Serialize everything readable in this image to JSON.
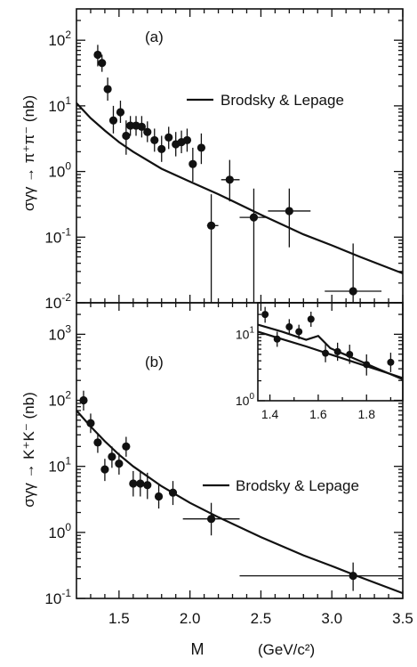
{
  "chart_data": [
    {
      "type": "scatter",
      "panel_label": "(a)",
      "ylabel": "σγγ → π⁺π⁻  (nb)",
      "yscale": "log",
      "ylim": [
        0.01,
        300
      ],
      "xlim": [
        1.2,
        3.5
      ],
      "yticks": [
        {
          "value": 0.01,
          "base": "10",
          "exp": "-2"
        },
        {
          "value": 0.1,
          "base": "10",
          "exp": "-1"
        },
        {
          "value": 1,
          "base": "10",
          "exp": "0"
        },
        {
          "value": 10,
          "base": "10",
          "exp": "1"
        },
        {
          "value": 100,
          "base": "10",
          "exp": "2"
        }
      ],
      "legend": {
        "label": "Brodsky & Lepage",
        "placement": "upper-right"
      },
      "series": [
        {
          "name": "data",
          "points": [
            {
              "x": 1.35,
              "y": 60,
              "ylo": 40,
              "yhi": 85
            },
            {
              "x": 1.38,
              "y": 45,
              "ylo": 33,
              "yhi": 60
            },
            {
              "x": 1.42,
              "y": 18,
              "ylo": 12,
              "yhi": 27
            },
            {
              "x": 1.46,
              "y": 6.0,
              "ylo": 3.8,
              "yhi": 10
            },
            {
              "x": 1.51,
              "y": 8.0,
              "ylo": 5.5,
              "yhi": 12
            },
            {
              "x": 1.55,
              "y": 3.5,
              "ylo": 1.8,
              "yhi": 6
            },
            {
              "x": 1.58,
              "y": 5.0,
              "ylo": 3.5,
              "yhi": 7
            },
            {
              "x": 1.62,
              "y": 5.0,
              "ylo": 3.5,
              "yhi": 7
            },
            {
              "x": 1.66,
              "y": 4.8,
              "ylo": 3.3,
              "yhi": 7
            },
            {
              "x": 1.7,
              "y": 4.0,
              "ylo": 2.8,
              "yhi": 5.8
            },
            {
              "x": 1.75,
              "y": 3.0,
              "ylo": 2.0,
              "yhi": 4.5
            },
            {
              "x": 1.8,
              "y": 2.2,
              "ylo": 1.4,
              "yhi": 3.5
            },
            {
              "x": 1.85,
              "y": 3.3,
              "ylo": 2.2,
              "yhi": 4.8
            },
            {
              "x": 1.9,
              "y": 2.6,
              "ylo": 1.7,
              "yhi": 4.0
            },
            {
              "x": 1.94,
              "y": 2.8,
              "ylo": 1.9,
              "yhi": 4.2
            },
            {
              "x": 1.98,
              "y": 3.0,
              "ylo": 2.0,
              "yhi": 4.5
            },
            {
              "x": 2.02,
              "y": 1.3,
              "ylo": 0.7,
              "yhi": 2.3
            },
            {
              "x": 2.08,
              "y": 2.3,
              "ylo": 1.3,
              "yhi": 3.8
            },
            {
              "x": 2.15,
              "y": 0.15,
              "ylo": 0.01,
              "yhi": 0.45,
              "xlo": 2.12,
              "xhi": 2.2
            },
            {
              "x": 2.28,
              "y": 0.75,
              "ylo": 0.35,
              "yhi": 1.5,
              "xlo": 2.22,
              "xhi": 2.35
            },
            {
              "x": 2.45,
              "y": 0.2,
              "ylo": 0.01,
              "yhi": 0.55,
              "xlo": 2.35,
              "xhi": 2.55
            },
            {
              "x": 2.7,
              "y": 0.25,
              "ylo": 0.07,
              "yhi": 0.55,
              "xlo": 2.55,
              "xhi": 2.85
            },
            {
              "x": 3.15,
              "y": 0.015,
              "ylo": 0.01,
              "yhi": 0.08,
              "xlo": 2.95,
              "xhi": 3.35
            }
          ]
        },
        {
          "name": "Brodsky & Lepage",
          "type": "line",
          "x": [
            1.2,
            1.3,
            1.4,
            1.5,
            1.6,
            1.8,
            2.0,
            2.2,
            2.5,
            2.8,
            3.0,
            3.2,
            3.5
          ],
          "y": [
            11,
            6.5,
            4.2,
            2.8,
            2.0,
            1.1,
            0.7,
            0.45,
            0.22,
            0.11,
            0.075,
            0.05,
            0.028
          ]
        }
      ]
    },
    {
      "type": "scatter",
      "panel_label": "(b)",
      "ylabel": "σγγ → K⁺K⁻  (nb)",
      "xlabel": "M",
      "xunit": "(GeV/c²)",
      "yscale": "log",
      "ylim": [
        0.1,
        3000
      ],
      "xlim": [
        1.2,
        3.5
      ],
      "xticks": [
        "1.5",
        "2.0",
        "2.5",
        "3.0",
        "3.5"
      ],
      "yticks": [
        {
          "value": 0.1,
          "base": "10",
          "exp": "-1"
        },
        {
          "value": 1,
          "base": "10",
          "exp": "0"
        },
        {
          "value": 10,
          "base": "10",
          "exp": "1"
        },
        {
          "value": 100,
          "base": "10",
          "exp": "2"
        },
        {
          "value": 1000,
          "base": "10",
          "exp": "3"
        }
      ],
      "legend": {
        "label": "Brodsky & Lepage",
        "placement": "center-right"
      },
      "series": [
        {
          "name": "data",
          "points": [
            {
              "x": 1.25,
              "y": 100,
              "ylo": 70,
              "yhi": 140
            },
            {
              "x": 1.3,
              "y": 45,
              "ylo": 32,
              "yhi": 63
            },
            {
              "x": 1.35,
              "y": 23,
              "ylo": 16,
              "yhi": 32
            },
            {
              "x": 1.4,
              "y": 9,
              "ylo": 6,
              "yhi": 13
            },
            {
              "x": 1.45,
              "y": 14,
              "ylo": 9.5,
              "yhi": 20
            },
            {
              "x": 1.5,
              "y": 11,
              "ylo": 7.5,
              "yhi": 16
            },
            {
              "x": 1.55,
              "y": 20,
              "ylo": 14,
              "yhi": 28
            },
            {
              "x": 1.6,
              "y": 5.5,
              "ylo": 3.5,
              "yhi": 8.5
            },
            {
              "x": 1.65,
              "y": 5.5,
              "ylo": 3.5,
              "yhi": 8.5
            },
            {
              "x": 1.7,
              "y": 5.2,
              "ylo": 3.2,
              "yhi": 8
            },
            {
              "x": 1.78,
              "y": 3.5,
              "ylo": 2.3,
              "yhi": 5.3
            },
            {
              "x": 1.88,
              "y": 4.0,
              "ylo": 2.6,
              "yhi": 6.0
            },
            {
              "x": 2.15,
              "y": 1.6,
              "ylo": 0.9,
              "yhi": 2.8,
              "xlo": 1.95,
              "xhi": 2.35
            },
            {
              "x": 3.15,
              "y": 0.22,
              "ylo": 0.13,
              "yhi": 0.35,
              "xlo": 2.35,
              "xhi": 3.5
            }
          ]
        },
        {
          "name": "Brodsky & Lepage",
          "type": "line",
          "x": [
            1.2,
            1.3,
            1.4,
            1.5,
            1.6,
            1.8,
            2.0,
            2.2,
            2.5,
            2.8,
            3.0,
            3.2,
            3.5
          ],
          "y": [
            70,
            40,
            24,
            15,
            10,
            5,
            2.8,
            1.7,
            0.85,
            0.45,
            0.31,
            0.21,
            0.12
          ]
        }
      ],
      "inset": {
        "yscale": "log",
        "ylim": [
          1,
          30
        ],
        "xlim": [
          1.35,
          1.95
        ],
        "xticks": [
          "1.4",
          "1.6",
          "1.8"
        ],
        "yticks": [
          {
            "value": 1,
            "base": "10",
            "exp": "0"
          },
          {
            "value": 10,
            "base": "10",
            "exp": "1"
          }
        ],
        "points": [
          {
            "x": 1.38,
            "y": 20,
            "ylo": 15,
            "yhi": 26
          },
          {
            "x": 1.43,
            "y": 8.5,
            "ylo": 6.5,
            "yhi": 11
          },
          {
            "x": 1.48,
            "y": 13,
            "ylo": 10,
            "yhi": 17
          },
          {
            "x": 1.52,
            "y": 11,
            "ylo": 8.5,
            "yhi": 14
          },
          {
            "x": 1.57,
            "y": 17,
            "ylo": 13,
            "yhi": 22
          },
          {
            "x": 1.63,
            "y": 5.2,
            "ylo": 3.8,
            "yhi": 7.2
          },
          {
            "x": 1.68,
            "y": 5.5,
            "ylo": 4.0,
            "yhi": 7.5
          },
          {
            "x": 1.73,
            "y": 5.0,
            "ylo": 3.6,
            "yhi": 7
          },
          {
            "x": 1.8,
            "y": 3.5,
            "ylo": 2.4,
            "yhi": 5
          },
          {
            "x": 1.9,
            "y": 3.8,
            "ylo": 2.7,
            "yhi": 5.3
          }
        ],
        "curves": [
          {
            "x": [
              1.35,
              1.45,
              1.55,
              1.6,
              1.65,
              1.75,
              1.85,
              1.95
            ],
            "y": [
              14,
              11,
              8.3,
              9.5,
              6.2,
              4.3,
              3.0,
              2.1
            ]
          },
          {
            "x": [
              1.35,
              1.45,
              1.55,
              1.65,
              1.75,
              1.85,
              1.95
            ],
            "y": [
              11,
              8.5,
              6.6,
              5.0,
              3.8,
              2.9,
              2.2
            ]
          }
        ]
      }
    }
  ]
}
